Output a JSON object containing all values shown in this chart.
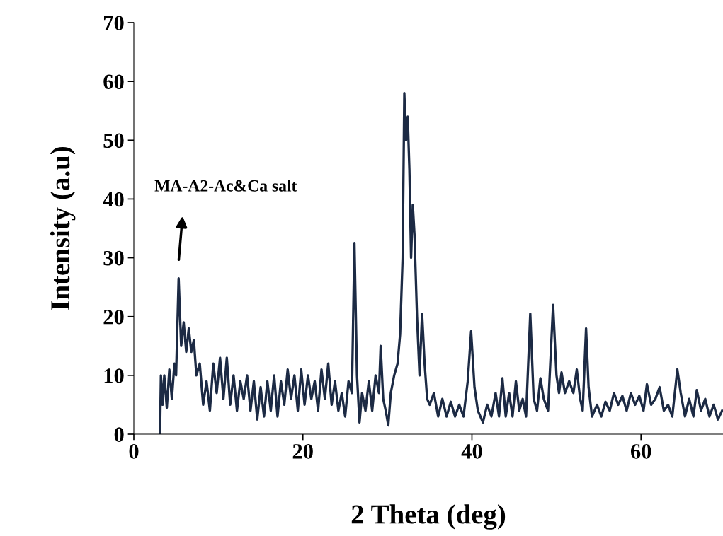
{
  "chart_data": {
    "type": "line",
    "xlabel": "2 Theta (deg)",
    "ylabel": "Intensity (a.u)",
    "xlim": [
      0,
      69.7
    ],
    "xticks": [
      0,
      20,
      40,
      60
    ],
    "ylim": [
      0,
      70
    ],
    "yticks": [
      0,
      10,
      20,
      30,
      40,
      50,
      60,
      70
    ],
    "grid": false,
    "marker": "none",
    "line_style": "solid",
    "annotations": [
      "MA-A2-Ac&Ca salt"
    ],
    "series": [
      {
        "color": "#1c2a44",
        "x": [
          3.1,
          3.2,
          3.4,
          3.6,
          3.9,
          4.2,
          4.5,
          4.8,
          5.0,
          5.3,
          5.6,
          5.9,
          6.2,
          6.5,
          6.8,
          7.1,
          7.4,
          7.8,
          8.2,
          8.6,
          9.0,
          9.4,
          9.8,
          10.2,
          10.6,
          11.0,
          11.4,
          11.8,
          12.2,
          12.6,
          13.0,
          13.4,
          13.8,
          14.2,
          14.6,
          15.0,
          15.4,
          15.8,
          16.2,
          16.6,
          17.0,
          17.4,
          17.8,
          18.2,
          18.6,
          19.0,
          19.4,
          19.8,
          20.2,
          20.6,
          21.0,
          21.4,
          21.8,
          22.2,
          22.6,
          23.0,
          23.4,
          23.8,
          24.2,
          24.6,
          25.0,
          25.4,
          25.8,
          26.1,
          26.4,
          26.7,
          27.0,
          27.4,
          27.8,
          28.2,
          28.6,
          29.0,
          29.2,
          29.5,
          29.8,
          30.1,
          30.4,
          30.8,
          31.2,
          31.5,
          31.8,
          32.0,
          32.2,
          32.4,
          32.6,
          32.8,
          33.0,
          33.2,
          33.5,
          33.8,
          34.1,
          34.4,
          34.7,
          35.0,
          35.5,
          36.0,
          36.5,
          37.0,
          37.5,
          38.0,
          38.5,
          39.0,
          39.5,
          39.9,
          40.3,
          40.7,
          41.3,
          41.8,
          42.3,
          42.8,
          43.2,
          43.6,
          44.0,
          44.4,
          44.8,
          45.2,
          45.6,
          46.0,
          46.4,
          46.9,
          47.3,
          47.7,
          48.1,
          48.5,
          49.0,
          49.6,
          50.0,
          50.3,
          50.6,
          51.0,
          51.5,
          52.0,
          52.4,
          52.8,
          53.1,
          53.5,
          53.8,
          54.2,
          54.8,
          55.3,
          55.8,
          56.3,
          56.8,
          57.3,
          57.8,
          58.3,
          58.8,
          59.3,
          59.8,
          60.3,
          60.7,
          61.2,
          61.7,
          62.2,
          62.7,
          63.2,
          63.7,
          64.3,
          64.7,
          65.2,
          65.7,
          66.2,
          66.6,
          67.1,
          67.6,
          68.1,
          68.6,
          69.1,
          69.6
        ],
        "values": [
          0,
          10,
          5,
          10,
          4.5,
          11,
          6,
          12,
          10,
          26.5,
          15,
          19,
          14,
          18,
          14,
          16,
          10,
          12,
          5,
          9,
          4,
          12,
          7,
          13,
          6,
          13,
          5,
          10,
          4,
          9,
          6,
          10,
          4,
          9,
          2.5,
          8,
          3,
          9,
          4,
          10,
          3,
          9,
          5,
          11,
          6,
          10,
          4,
          11,
          5,
          10,
          6,
          9,
          4,
          11,
          6,
          12,
          5,
          9,
          4,
          7,
          3,
          9,
          7,
          32.5,
          10,
          2,
          7,
          4,
          9,
          4,
          10,
          7,
          15,
          6,
          4,
          1.5,
          7,
          10,
          12,
          17,
          30,
          58,
          50,
          54,
          45,
          30,
          39,
          34,
          20,
          10,
          20.5,
          12,
          6,
          5,
          7,
          3,
          6,
          3,
          5.5,
          3,
          5,
          3,
          9,
          17.5,
          8,
          4,
          2,
          5,
          3,
          7,
          3,
          9.5,
          3,
          7,
          3,
          9,
          4,
          6,
          3,
          20.5,
          6,
          4,
          9.5,
          6,
          4,
          22,
          10,
          7,
          10.5,
          7,
          9,
          7,
          11,
          6,
          4,
          18,
          8,
          3,
          5,
          3,
          5.5,
          4,
          7,
          5,
          6.5,
          4,
          7,
          5,
          6.5,
          4,
          8.5,
          5,
          6,
          8,
          4,
          5,
          3,
          11,
          7,
          3,
          6,
          3,
          7.5,
          4,
          6,
          3,
          5,
          2.5,
          4
        ]
      }
    ]
  }
}
